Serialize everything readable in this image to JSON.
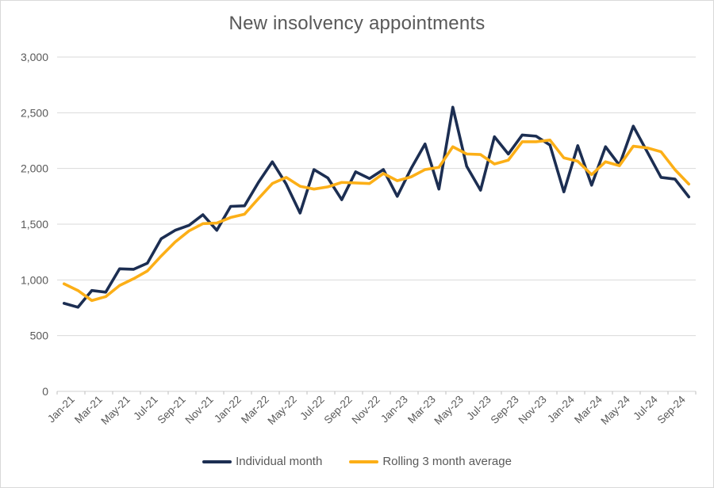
{
  "colors": {
    "navy": "#1C2E52",
    "orange": "#FCAF17",
    "text_gray": "#595959",
    "grid_gray": "#D9D9D9",
    "axis_gray": "#BFBFBF"
  },
  "legend": {
    "items": [
      "Individual month",
      "Rolling 3 month average"
    ]
  },
  "chart_data": {
    "type": "line",
    "title": "New insolvency appointments",
    "xlabel": "",
    "ylabel": "",
    "ylim": [
      0,
      3000
    ],
    "y_ticks": [
      0,
      500,
      1000,
      1500,
      2000,
      2500,
      3000
    ],
    "y_tick_labels": [
      "0",
      "500",
      "1,000",
      "1,500",
      "2,000",
      "2,500",
      "3,000"
    ],
    "grid": "horizontal",
    "legend_position": "bottom",
    "categories": [
      "Jan-21",
      "Feb-21",
      "Mar-21",
      "Apr-21",
      "May-21",
      "Jun-21",
      "Jul-21",
      "Aug-21",
      "Sep-21",
      "Oct-21",
      "Nov-21",
      "Dec-21",
      "Jan-22",
      "Feb-22",
      "Mar-22",
      "Apr-22",
      "May-22",
      "Jun-22",
      "Jul-22",
      "Aug-22",
      "Sep-22",
      "Oct-22",
      "Nov-22",
      "Dec-22",
      "Jan-23",
      "Feb-23",
      "Mar-23",
      "Apr-23",
      "May-23",
      "Jun-23",
      "Jul-23",
      "Aug-23",
      "Sep-23",
      "Oct-23",
      "Nov-23",
      "Dec-23",
      "Jan-24",
      "Feb-24",
      "Mar-24",
      "Apr-24",
      "May-24",
      "Jun-24",
      "Jul-24",
      "Aug-24",
      "Sep-24",
      "Oct-24"
    ],
    "x_tick_labels": [
      "Jan-21",
      "Mar-21",
      "May-21",
      "Jul-21",
      "Sep-21",
      "Nov-21",
      "Jan-22",
      "Mar-22",
      "May-22",
      "Jul-22",
      "Sep-22",
      "Nov-22",
      "Jan-23",
      "Mar-23",
      "May-23",
      "Jul-23",
      "Sep-23",
      "Nov-23",
      "Jan-24",
      "Mar-24",
      "May-24",
      "Jul-24",
      "Sep-24"
    ],
    "series": [
      {
        "name": "Individual month",
        "color": "#1C2E52",
        "values": [
          790,
          755,
          905,
          890,
          1100,
          1095,
          1150,
          1370,
          1445,
          1490,
          1585,
          1445,
          1660,
          1665,
          1875,
          2060,
          1860,
          1600,
          1990,
          1915,
          1720,
          1970,
          1910,
          1990,
          1750,
          2000,
          2220,
          1815,
          2550,
          2020,
          1805,
          2285,
          2130,
          2300,
          2290,
          2210,
          1790,
          2205,
          1850,
          2195,
          2030,
          2380,
          2150,
          1920,
          1905,
          1745
        ]
      },
      {
        "name": "Rolling 3 month average",
        "color": "#FCAF17",
        "values": [
          965,
          905,
          815,
          850,
          950,
          1010,
          1080,
          1215,
          1340,
          1440,
          1505,
          1510,
          1560,
          1590,
          1730,
          1865,
          1920,
          1840,
          1815,
          1835,
          1875,
          1870,
          1865,
          1955,
          1890,
          1925,
          1990,
          2010,
          2195,
          2130,
          2125,
          2040,
          2075,
          2240,
          2240,
          2255,
          2095,
          2065,
          1945,
          2060,
          2025,
          2200,
          2185,
          2150,
          1990,
          1860
        ]
      }
    ]
  }
}
